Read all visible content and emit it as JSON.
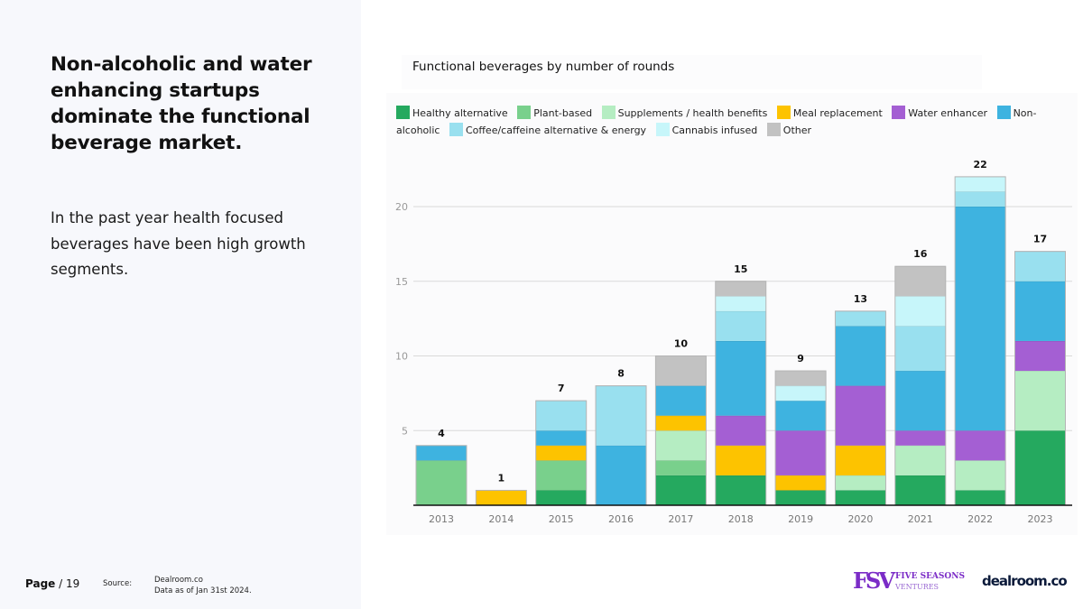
{
  "left": {
    "headline": "Non-alcoholic and water enhancing startups dominate the functional beverage market.",
    "subtext": "In the past year health focused beverages have been high growth segments."
  },
  "footer": {
    "page_label": "Page",
    "page_total": "/ 19",
    "source_label": "Source:",
    "source_line1": "Dealroom.co",
    "source_line2": "Data as of Jan 31st  2024."
  },
  "logos": {
    "fsv_mark": "FSV",
    "fsv_name": "FIVE SEASONS",
    "fsv_sub": "VENTURES",
    "dealroom": "dealroom.co"
  },
  "chart_data": {
    "type": "bar",
    "stacked": true,
    "title": "Functional beverages by number of rounds",
    "xlabel": "",
    "ylabel": "",
    "ylim": [
      0,
      22
    ],
    "yticks": [
      5,
      10,
      15,
      20
    ],
    "grid": true,
    "legend_position": "top",
    "categories": [
      "2013",
      "2014",
      "2015",
      "2016",
      "2017",
      "2018",
      "2019",
      "2020",
      "2021",
      "2022",
      "2023"
    ],
    "totals": [
      4,
      1,
      7,
      8,
      10,
      15,
      9,
      13,
      16,
      22,
      17
    ],
    "series": [
      {
        "name": "Healthy alternative",
        "color": "#25a95f",
        "values": [
          0,
          0,
          1,
          0,
          2,
          2,
          1,
          1,
          2,
          1,
          5
        ]
      },
      {
        "name": "Plant-based",
        "color": "#79d08c",
        "values": [
          3,
          0,
          2,
          0,
          1,
          0,
          0,
          0,
          0,
          0,
          0
        ]
      },
      {
        "name": "Supplements / health benefits",
        "color": "#b5edc2",
        "values": [
          0,
          0,
          0,
          0,
          2,
          0,
          0,
          1,
          2,
          2,
          4
        ]
      },
      {
        "name": "Meal replacement",
        "color": "#fdc300",
        "values": [
          0,
          1,
          1,
          0,
          1,
          2,
          1,
          2,
          0,
          0,
          0
        ]
      },
      {
        "name": "Water enhancer",
        "color": "#a45fd3",
        "values": [
          0,
          0,
          0,
          0,
          0,
          2,
          3,
          4,
          1,
          2,
          2
        ]
      },
      {
        "name": "Non-alcoholic",
        "color": "#3eb3e0",
        "values": [
          1,
          0,
          1,
          4,
          2,
          5,
          2,
          4,
          4,
          15,
          4
        ]
      },
      {
        "name": "Coffee/caffeine alternative & energy",
        "color": "#99e0ef",
        "values": [
          0,
          0,
          2,
          4,
          0,
          2,
          0,
          1,
          3,
          1,
          2
        ]
      },
      {
        "name": "Cannabis infused",
        "color": "#c7f6fa",
        "values": [
          0,
          0,
          0,
          0,
          0,
          1,
          1,
          0,
          2,
          1,
          0
        ]
      },
      {
        "name": "Other",
        "color": "#c2c2c2",
        "values": [
          0,
          0,
          0,
          0,
          2,
          1,
          1,
          0,
          2,
          0,
          0
        ]
      }
    ]
  }
}
